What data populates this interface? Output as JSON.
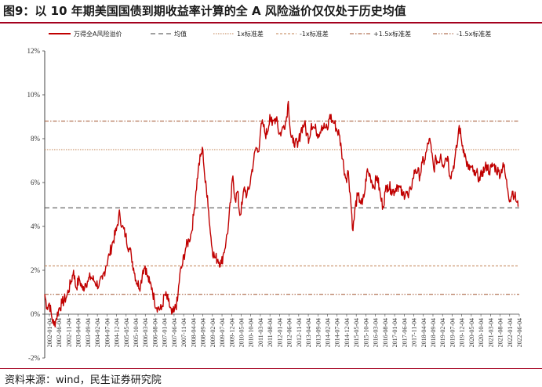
{
  "title": "图9：以 10 年期美国国债到期收益率计算的全 A 风险溢价仅仅处于历史均值",
  "source": "资料来源：wind，民生证券研究院",
  "colors": {
    "accent": "#a4001e",
    "series": "#c00000",
    "mean": "#404040",
    "band1": "#c08050",
    "band15": "#a0522d"
  },
  "chart_data": {
    "type": "line",
    "title": "以 10 年期美国国债到期收益率计算的全 A 风险溢价",
    "xlabel": "",
    "ylabel": "",
    "ylim": [
      -2,
      12
    ],
    "yticks": [
      -2,
      0,
      2,
      4,
      6,
      8,
      10,
      12
    ],
    "ytick_labels": [
      "-2%",
      "0%",
      "2%",
      "4%",
      "6%",
      "8%",
      "10%",
      "12%"
    ],
    "xlim": [
      2002.25,
      2022.8
    ],
    "xticks": [
      "2002-01-04",
      "2002-06-04",
      "2002-11-04",
      "2003-04-04",
      "2003-09-04",
      "2004-02-04",
      "2004-07-04",
      "2004-12-04",
      "2005-05-04",
      "2005-10-04",
      "2006-03-04",
      "2006-08-04",
      "2007-01-04",
      "2007-06-04",
      "2007-11-04",
      "2008-04-04",
      "2008-09-04",
      "2009-02-04",
      "2009-07-04",
      "2009-12-04",
      "2010-05-04",
      "2010-10-04",
      "2011-03-04",
      "2011-08-04",
      "2012-01-04",
      "2012-06-04",
      "2012-11-04",
      "2013-04-04",
      "2013-09-04",
      "2014-02-04",
      "2014-07-04",
      "2014-12-04",
      "2015-05-04",
      "2015-10-04",
      "2016-03-04",
      "2016-08-04",
      "2017-01-04",
      "2017-06-04",
      "2017-11-04",
      "2018-04-04",
      "2018-09-04",
      "2019-02-04",
      "2019-07-04",
      "2019-12-04",
      "2020-05-04",
      "2020-10-04",
      "2021-03-04",
      "2021-08-04",
      "2022-01-04",
      "2022-06-04"
    ],
    "legend": [
      "万得全A风险溢价",
      "均值",
      "1x标准差",
      "-1x标准差",
      "+1.5x标准差",
      "-1.5x标准差"
    ],
    "reference_lines": [
      {
        "name": "均值",
        "value": 4.85
      },
      {
        "name": "1x标准差",
        "value": 7.5
      },
      {
        "name": "-1x标准差",
        "value": 2.2
      },
      {
        "name": "+1.5x标准差",
        "value": 8.8
      },
      {
        "name": "-1.5x标准差",
        "value": 0.9
      }
    ],
    "series": [
      {
        "name": "万得全A风险溢价",
        "x": [
          2002.25,
          2002.35,
          2002.45,
          2002.55,
          2002.65,
          2002.75,
          2002.85,
          2003.0,
          2003.2,
          2003.4,
          2003.5,
          2003.6,
          2003.75,
          2003.9,
          2004.0,
          2004.1,
          2004.25,
          2004.4,
          2004.6,
          2004.75,
          2004.9,
          2005.05,
          2005.2,
          2005.35,
          2005.45,
          2005.5,
          2005.6,
          2005.75,
          2005.9,
          2006.0,
          2006.1,
          2006.25,
          2006.4,
          2006.5,
          2006.6,
          2006.7,
          2006.8,
          2006.9,
          2007.0,
          2007.15,
          2007.3,
          2007.45,
          2007.6,
          2007.75,
          2007.85,
          2008.0,
          2008.1,
          2008.2,
          2008.35,
          2008.5,
          2008.6,
          2008.7,
          2008.8,
          2008.9,
          2009.0,
          2009.1,
          2009.2,
          2009.3,
          2009.4,
          2009.5,
          2009.6,
          2009.75,
          2009.9,
          2010.0,
          2010.1,
          2010.2,
          2010.3,
          2010.4,
          2010.5,
          2010.6,
          2010.7,
          2010.8,
          2010.9,
          2011.0,
          2011.1,
          2011.2,
          2011.3,
          2011.4,
          2011.5,
          2011.6,
          2011.7,
          2011.8,
          2011.9,
          2012.0,
          2012.1,
          2012.2,
          2012.3,
          2012.4,
          2012.5,
          2012.6,
          2012.7,
          2012.8,
          2012.9,
          2013.0,
          2013.1,
          2013.2,
          2013.35,
          2013.5,
          2013.6,
          2013.7,
          2013.8,
          2013.9,
          2014.0,
          2014.1,
          2014.25,
          2014.4,
          2014.5,
          2014.6,
          2014.7,
          2014.8,
          2014.9,
          2015.0,
          2015.1,
          2015.2,
          2015.3,
          2015.4,
          2015.5,
          2015.6,
          2015.7,
          2015.8,
          2015.9,
          2016.0,
          2016.1,
          2016.2,
          2016.35,
          2016.5,
          2016.65,
          2016.8,
          2016.9,
          2017.0,
          2017.1,
          2017.25,
          2017.4,
          2017.5,
          2017.6,
          2017.75,
          2017.9,
          2018.0,
          2018.1,
          2018.2,
          2018.3,
          2018.4,
          2018.5,
          2018.6,
          2018.7,
          2018.8,
          2018.9,
          2019.0,
          2019.1,
          2019.2,
          2019.3,
          2019.4,
          2019.5,
          2019.6,
          2019.7,
          2019.8,
          2019.9,
          2020.0,
          2020.1,
          2020.2,
          2020.3,
          2020.4,
          2020.5,
          2020.6,
          2020.7,
          2020.8,
          2020.9,
          2021.0,
          2021.1,
          2021.2,
          2021.3,
          2021.4,
          2021.5,
          2021.6,
          2021.7,
          2021.8,
          2021.9,
          2022.0,
          2022.1,
          2022.2,
          2022.3,
          2022.4,
          2022.5,
          2022.6,
          2022.7,
          2022.75
        ],
        "y": [
          0.9,
          0.3,
          0.5,
          -0.1,
          -0.5,
          -0.2,
          0.2,
          0.5,
          0.8,
          1.5,
          2.0,
          1.2,
          1.6,
          1.1,
          1.4,
          1.5,
          1.7,
          1.5,
          1.3,
          1.6,
          2.2,
          2.7,
          3.3,
          3.8,
          4.4,
          4.6,
          4.0,
          3.6,
          3.0,
          2.7,
          2.1,
          1.4,
          1.3,
          2.0,
          2.2,
          1.7,
          1.4,
          1.2,
          0.6,
          0.3,
          0.2,
          0.9,
          0.6,
          0.0,
          0.1,
          0.6,
          1.8,
          2.2,
          3.0,
          3.4,
          3.7,
          4.5,
          5.6,
          6.6,
          7.2,
          7.5,
          6.0,
          5.4,
          4.0,
          3.0,
          2.6,
          2.5,
          2.3,
          2.8,
          3.3,
          4.0,
          5.1,
          6.3,
          5.2,
          5.6,
          4.5,
          5.0,
          5.8,
          5.4,
          5.7,
          6.4,
          7.0,
          7.6,
          7.4,
          8.4,
          8.7,
          8.2,
          8.3,
          9.1,
          8.6,
          8.9,
          9.0,
          8.2,
          8.3,
          8.6,
          8.8,
          9.7,
          8.2,
          7.8,
          7.9,
          7.6,
          8.4,
          8.7,
          8.2,
          8.0,
          8.7,
          8.5,
          8.4,
          8.2,
          8.6,
          8.5,
          8.4,
          9.1,
          8.8,
          8.7,
          8.4,
          8.2,
          7.5,
          6.7,
          6.2,
          6.5,
          5.2,
          3.8,
          4.9,
          5.4,
          5.2,
          5.0,
          5.5,
          6.5,
          6.3,
          5.8,
          6.3,
          5.3,
          4.9,
          5.6,
          5.9,
          5.7,
          5.6,
          5.9,
          5.8,
          5.4,
          5.6,
          5.3,
          5.7,
          6.2,
          6.6,
          6.5,
          6.3,
          6.9,
          7.0,
          7.5,
          8.0,
          7.4,
          6.6,
          7.1,
          6.9,
          7.3,
          6.8,
          7.1,
          7.2,
          6.3,
          6.5,
          7.0,
          7.6,
          8.6,
          7.9,
          7.5,
          7.0,
          6.6,
          6.7,
          6.5,
          6.3,
          6.4,
          6.1,
          6.5,
          6.6,
          6.8,
          6.5,
          6.7,
          6.8,
          6.6,
          6.5,
          6.4,
          6.9,
          6.3,
          5.7,
          5.2,
          5.6,
          5.4,
          5.1,
          4.9
        ]
      }
    ]
  }
}
